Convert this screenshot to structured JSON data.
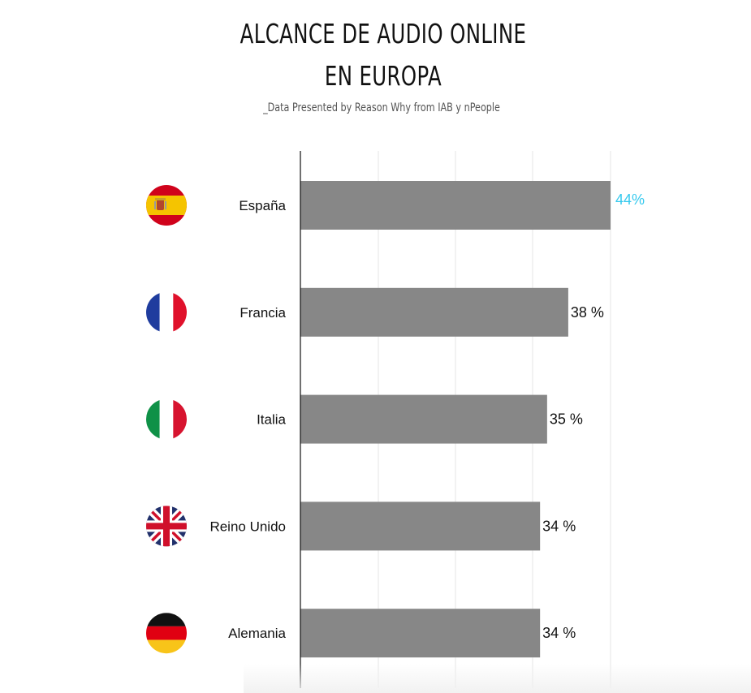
{
  "header": {
    "title_line1": "ALCANCE DE AUDIO ONLINE",
    "title_line2": "EN EUROPA",
    "subtitle": "_Data Presented by Reason Why from IAB y nPeople"
  },
  "colors": {
    "bar": "#878787",
    "highlight_label": "#36c9ee",
    "label": "#111111",
    "grid": "#e6e6e6",
    "axis": "#111111"
  },
  "chart_data": {
    "type": "bar",
    "orientation": "horizontal",
    "title": "ALCANCE DE AUDIO ONLINE EN EUROPA",
    "subtitle": "_Data Presented by Reason Why from IAB y nPeople",
    "xlabel": "",
    "ylabel": "",
    "categories": [
      "España",
      "Francia",
      "Italia",
      "Reino Unido",
      "Alemania"
    ],
    "values": [
      44,
      38,
      35,
      34,
      34
    ],
    "value_labels": [
      "44%",
      "38 %",
      "35 %",
      "34 %",
      "34 %"
    ],
    "flags": [
      "flag-spain-icon",
      "flag-france-icon",
      "flag-italy-icon",
      "flag-uk-icon",
      "flag-germany-icon"
    ],
    "highlight_index": 0,
    "xlim": [
      0,
      44
    ],
    "grid": true,
    "legend": "none"
  }
}
